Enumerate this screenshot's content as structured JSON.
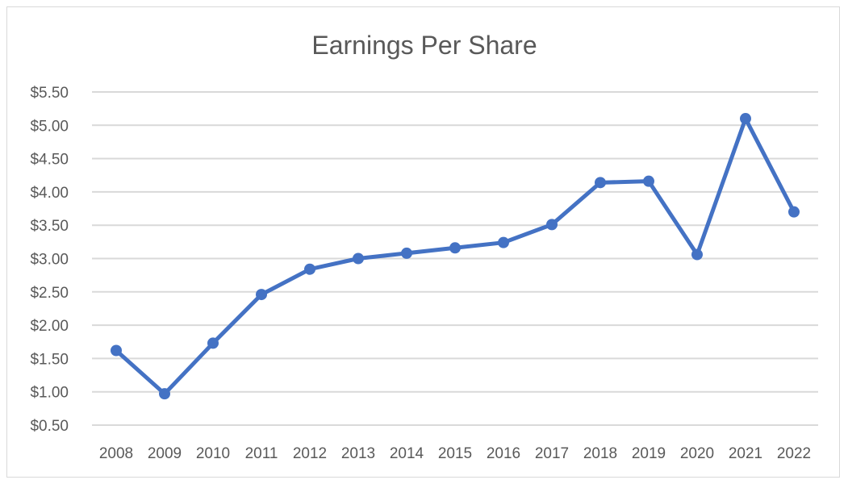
{
  "chart_data": {
    "type": "line",
    "title": "Earnings Per Share",
    "xlabel": "",
    "ylabel": "",
    "categories": [
      "2008",
      "2009",
      "2010",
      "2011",
      "2012",
      "2013",
      "2014",
      "2015",
      "2016",
      "2017",
      "2018",
      "2019",
      "2020",
      "2021",
      "2022"
    ],
    "series": [
      {
        "values": [
          1.62,
          0.97,
          1.73,
          2.46,
          2.84,
          3.0,
          3.08,
          3.16,
          3.24,
          3.51,
          4.14,
          4.16,
          3.06,
          5.1,
          3.7
        ]
      }
    ],
    "ylim": [
      0.5,
      5.5
    ],
    "yticks": [
      "$0.50",
      "$1.00",
      "$1.50",
      "$2.00",
      "$2.50",
      "$3.00",
      "$3.50",
      "$4.00",
      "$4.50",
      "$5.00",
      "$5.50"
    ],
    "grid": true,
    "legend": "none",
    "color": "#4472c4"
  }
}
